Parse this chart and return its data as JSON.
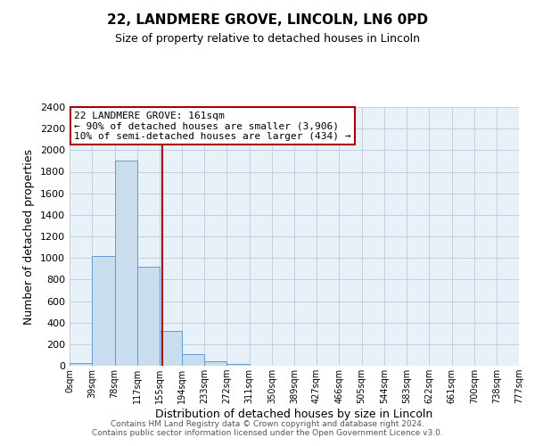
{
  "title": "22, LANDMERE GROVE, LINCOLN, LN6 0PD",
  "subtitle": "Size of property relative to detached houses in Lincoln",
  "xlabel": "Distribution of detached houses by size in Lincoln",
  "ylabel": "Number of detached properties",
  "bar_edges": [
    0,
    39,
    78,
    117,
    155,
    194,
    233,
    272,
    311,
    350,
    389,
    427,
    466,
    505,
    544,
    583,
    622,
    661,
    700,
    738,
    777
  ],
  "bar_heights": [
    25,
    1020,
    1900,
    920,
    320,
    105,
    45,
    20,
    0,
    0,
    0,
    0,
    0,
    0,
    0,
    0,
    0,
    0,
    0,
    0
  ],
  "tick_labels": [
    "0sqm",
    "39sqm",
    "78sqm",
    "117sqm",
    "155sqm",
    "194sqm",
    "233sqm",
    "272sqm",
    "311sqm",
    "350sqm",
    "389sqm",
    "427sqm",
    "466sqm",
    "505sqm",
    "544sqm",
    "583sqm",
    "622sqm",
    "661sqm",
    "700sqm",
    "738sqm",
    "777sqm"
  ],
  "bar_color": "#c9ddef",
  "bar_edge_color": "#5b9bd5",
  "vertical_line_x": 161,
  "vertical_line_color": "#aa0000",
  "ylim": [
    0,
    2400
  ],
  "yticks": [
    0,
    200,
    400,
    600,
    800,
    1000,
    1200,
    1400,
    1600,
    1800,
    2000,
    2200,
    2400
  ],
  "annotation_title": "22 LANDMERE GROVE: 161sqm",
  "annotation_line1": "← 90% of detached houses are smaller (3,906)",
  "annotation_line2": "10% of semi-detached houses are larger (434) →",
  "annotation_box_color": "#ffffff",
  "annotation_box_edge_color": "#aa0000",
  "footer_line1": "Contains HM Land Registry data © Crown copyright and database right 2024.",
  "footer_line2": "Contains public sector information licensed under the Open Government Licence v3.0.",
  "background_color": "#ffffff",
  "plot_bg_color": "#e8f0f8",
  "grid_color": "#c0d0e0",
  "fig_width": 6.0,
  "fig_height": 5.0,
  "dpi": 100
}
